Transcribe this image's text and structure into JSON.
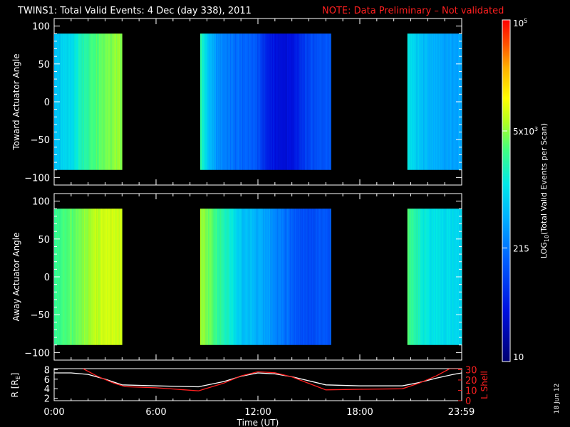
{
  "title": {
    "main": "TWINS1: Total Valid Events:  4 Dec (day 338), 2011",
    "note": "NOTE: Data Preliminary – Not validated"
  },
  "stamp": "18 Jun 12",
  "chart_data": [
    {
      "type": "heatmap",
      "ylabel": "Toward Actuator Angle",
      "ylim": [
        -110,
        110
      ],
      "y_range": [
        -90,
        90
      ],
      "yticks": [
        "100",
        "50",
        "0",
        "−50",
        "−100"
      ],
      "xlim": [
        0,
        24
      ],
      "data_windows": [
        [
          0,
          4
        ],
        [
          8.6,
          16.3
        ],
        [
          20.8,
          24
        ]
      ],
      "color_profile": [
        {
          "t": 0.0,
          "log_counts": 2.8
        },
        {
          "t": 0.5,
          "log_counts": 2.9
        },
        {
          "t": 1.0,
          "log_counts": 3.0
        },
        {
          "t": 1.5,
          "log_counts": 3.2
        },
        {
          "t": 2.0,
          "log_counts": 3.4
        },
        {
          "t": 2.5,
          "log_counts": 3.55
        },
        {
          "t": 3.0,
          "log_counts": 3.65
        },
        {
          "t": 3.5,
          "log_counts": 3.7
        },
        {
          "t": 4.0,
          "log_counts": 3.7
        },
        {
          "t": 8.6,
          "log_counts": 3.4
        },
        {
          "t": 9.0,
          "log_counts": 2.9
        },
        {
          "t": 9.5,
          "log_counts": 2.55
        },
        {
          "t": 10.0,
          "log_counts": 2.4
        },
        {
          "t": 10.5,
          "log_counts": 2.3
        },
        {
          "t": 11.0,
          "log_counts": 2.25
        },
        {
          "t": 11.5,
          "log_counts": 2.2
        },
        {
          "t": 12.0,
          "log_counts": 2.1
        },
        {
          "t": 12.5,
          "log_counts": 1.75
        },
        {
          "t": 13.0,
          "log_counts": 1.6
        },
        {
          "t": 13.5,
          "log_counts": 1.55
        },
        {
          "t": 14.0,
          "log_counts": 1.6
        },
        {
          "t": 14.5,
          "log_counts": 1.8
        },
        {
          "t": 15.0,
          "log_counts": 2.0
        },
        {
          "t": 15.5,
          "log_counts": 2.1
        },
        {
          "t": 16.3,
          "log_counts": 2.15
        },
        {
          "t": 20.8,
          "log_counts": 3.1
        },
        {
          "t": 21.3,
          "log_counts": 2.9
        },
        {
          "t": 22.0,
          "log_counts": 2.7
        },
        {
          "t": 23.0,
          "log_counts": 2.6
        },
        {
          "t": 24.0,
          "log_counts": 2.6
        }
      ]
    },
    {
      "type": "heatmap",
      "ylabel": "Away Actuator Angle",
      "ylim": [
        -110,
        110
      ],
      "y_range": [
        -90,
        90
      ],
      "yticks": [
        "100",
        "50",
        "0",
        "−50",
        "−100"
      ],
      "xlim": [
        0,
        24
      ],
      "data_windows": [
        [
          0,
          4
        ],
        [
          8.6,
          16.3
        ],
        [
          20.8,
          24
        ]
      ],
      "color_profile": [
        {
          "t": 0.0,
          "log_counts": 3.4
        },
        {
          "t": 0.5,
          "log_counts": 3.5
        },
        {
          "t": 1.0,
          "log_counts": 3.55
        },
        {
          "t": 1.5,
          "log_counts": 3.6
        },
        {
          "t": 2.0,
          "log_counts": 3.75
        },
        {
          "t": 2.5,
          "log_counts": 3.85
        },
        {
          "t": 3.0,
          "log_counts": 3.9
        },
        {
          "t": 4.0,
          "log_counts": 3.9
        },
        {
          "t": 8.6,
          "log_counts": 3.75
        },
        {
          "t": 9.0,
          "log_counts": 3.6
        },
        {
          "t": 9.5,
          "log_counts": 3.45
        },
        {
          "t": 10.0,
          "log_counts": 3.3
        },
        {
          "t": 10.5,
          "log_counts": 3.1
        },
        {
          "t": 11.0,
          "log_counts": 2.85
        },
        {
          "t": 11.5,
          "log_counts": 2.75
        },
        {
          "t": 12.0,
          "log_counts": 2.7
        },
        {
          "t": 12.5,
          "log_counts": 2.6
        },
        {
          "t": 13.0,
          "log_counts": 2.45
        },
        {
          "t": 13.5,
          "log_counts": 2.35
        },
        {
          "t": 14.0,
          "log_counts": 2.2
        },
        {
          "t": 14.5,
          "log_counts": 2.1
        },
        {
          "t": 15.0,
          "log_counts": 2.05
        },
        {
          "t": 15.5,
          "log_counts": 2.1
        },
        {
          "t": 16.3,
          "log_counts": 2.15
        },
        {
          "t": 20.8,
          "log_counts": 3.5
        },
        {
          "t": 21.3,
          "log_counts": 3.3
        },
        {
          "t": 22.0,
          "log_counts": 3.1
        },
        {
          "t": 23.0,
          "log_counts": 3.0
        },
        {
          "t": 24.0,
          "log_counts": 2.95
        }
      ]
    },
    {
      "type": "line",
      "ylabel_left": "R [R",
      "ylabel_left_sub": "E",
      "ylabel_left_tail": "]",
      "ylabel_right": "L Shell",
      "ylim_left": [
        1.5,
        8.2
      ],
      "ylim_right": [
        0,
        31
      ],
      "yticks_left": [
        "8",
        "6",
        "4",
        "2"
      ],
      "yticks_right": [
        "30",
        "20",
        "10",
        "0"
      ],
      "xlim": [
        0,
        24
      ],
      "xticks": [
        "0:00",
        "6:00",
        "12:00",
        "18:00",
        "23:59"
      ],
      "xtick_values": [
        0,
        6,
        12,
        18,
        23.98
      ],
      "xlabel": "Time (UT)",
      "series": [
        {
          "axis": "left",
          "color": "#ffffff",
          "x": [
            0,
            1,
            2,
            3,
            4,
            6,
            8.5,
            10,
            11,
            12,
            13,
            14,
            16,
            18,
            20.5,
            21.5,
            22.5,
            23.5,
            24
          ],
          "y": [
            7.3,
            7.3,
            7.0,
            6.0,
            4.8,
            4.6,
            4.4,
            5.5,
            6.6,
            7.3,
            7.1,
            6.5,
            4.8,
            4.6,
            4.6,
            5.3,
            6.2,
            7.0,
            7.3
          ]
        },
        {
          "axis": "right",
          "color": "#ff2020",
          "x": [
            1.7,
            2.5,
            3.5,
            4.2,
            6,
            8.5,
            10,
            11,
            12,
            13,
            14,
            16,
            18,
            20.5,
            21.5,
            22.5,
            23.3,
            24
          ],
          "y": [
            31,
            24,
            17,
            13.5,
            12.5,
            9.5,
            17,
            24,
            28,
            27,
            23,
            10.5,
            11,
            11.5,
            17,
            24,
            31,
            31
          ]
        }
      ]
    }
  ],
  "colorbar": {
    "label_log": "LOG",
    "label_sub": "10",
    "label_rest": "(Total Valid  Events per Scan)",
    "range_log": [
      1,
      5
    ],
    "ticks": [
      {
        "label": "10",
        "log": 1
      },
      {
        "label": "215",
        "log": 2.33
      },
      {
        "label": "5x10",
        "sup": "3",
        "log": 3.7
      },
      {
        "label": "10",
        "sup": "5",
        "log": 5
      }
    ]
  }
}
